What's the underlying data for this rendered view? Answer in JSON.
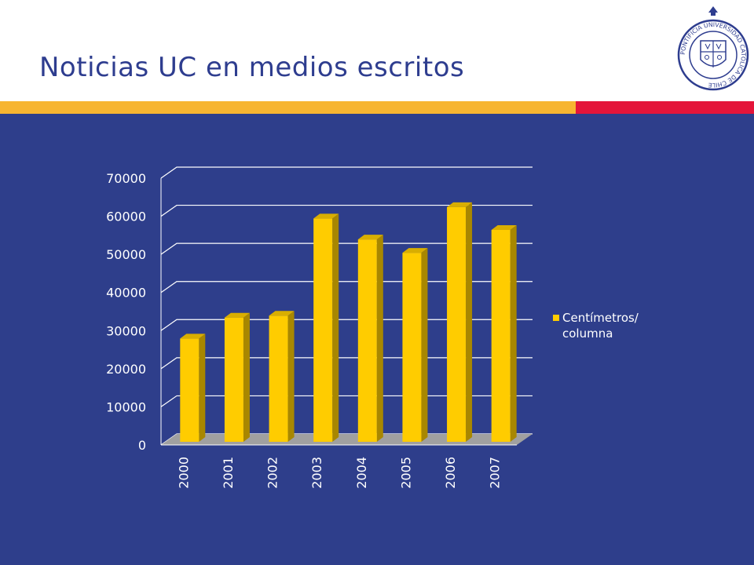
{
  "slide": {
    "title": "Noticias UC en medios escritos"
  },
  "logo": {
    "text": "PONTIFICIA UNIVERSIDAD CATÓLICA DE CHILE"
  },
  "colors": {
    "title": "#2E3D8F",
    "background": "#2E3E8B",
    "stripe_gold": "#F7B531",
    "stripe_red": "#E4153A",
    "bar_front": "#FFCC00",
    "bar_side": "#A88700",
    "bar_top": "#D9AE00",
    "floor": "#A0A0A0"
  },
  "chart_data": {
    "type": "bar",
    "categories": [
      "2000",
      "2001",
      "2002",
      "2003",
      "2004",
      "2005",
      "2006",
      "2007"
    ],
    "series": [
      {
        "name": "Centímetros/ columna",
        "values": [
          27500,
          33000,
          33500,
          59000,
          53500,
          50000,
          62000,
          56000
        ]
      }
    ],
    "legend_lines": [
      "Centímetros/",
      "columna"
    ],
    "legend_position": "right",
    "ylim": [
      0,
      70000
    ],
    "yticks": [
      "70000",
      "60000",
      "50000",
      "40000",
      "30000",
      "20000",
      "10000",
      "0"
    ],
    "grid": true,
    "style": "3d-column"
  }
}
